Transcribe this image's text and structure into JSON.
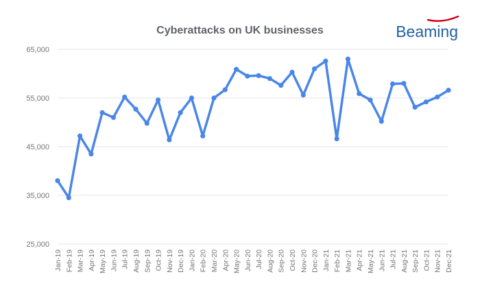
{
  "logo": {
    "text": "Beaming",
    "swoosh_color": "#d0021b",
    "text_color": "#1f5f9e"
  },
  "chart_data": {
    "type": "line",
    "title": "Cyberattacks on UK businesses",
    "xlabel": "",
    "ylabel": "",
    "categories": [
      "Jan-19",
      "Feb-19",
      "Mar-19",
      "Apr-19",
      "May-19",
      "Jun-19",
      "Jul-19",
      "Aug-19",
      "Sep-19",
      "Oct-19",
      "Nov-19",
      "Dec-19",
      "Jan-20",
      "Feb-20",
      "Mar-20",
      "Apr-20",
      "May-20",
      "Jun-20",
      "Jul-20",
      "Aug-20",
      "Sep-20",
      "Oct-20",
      "Nov-20",
      "Dec-20",
      "Jan-21",
      "Feb-21",
      "Mar-21",
      "Apr-21",
      "May-21",
      "Jun-21",
      "Jul-21",
      "Aug-21",
      "Sep-21",
      "Oct-21",
      "Nov-21",
      "Dec-21"
    ],
    "series": [
      {
        "values": [
          38000,
          34500,
          47200,
          43500,
          52000,
          51000,
          55200,
          52700,
          49800,
          54600,
          46400,
          52000,
          55000,
          47200,
          55000,
          56700,
          60900,
          59500,
          59600,
          59000,
          57600,
          60300,
          55600,
          61000,
          62600,
          46600,
          63000,
          55900,
          54600,
          50200,
          57900,
          58000,
          53100,
          54200,
          55200,
          56600
        ]
      }
    ],
    "ylim": [
      25000,
      65000
    ],
    "yticks": [
      25000,
      35000,
      45000,
      55000,
      65000
    ],
    "ytick_labels": [
      "25,000",
      "35,000",
      "45,000",
      "55,000",
      "65,000"
    ],
    "grid": true,
    "legend": "none",
    "color": "#4a86e8"
  }
}
